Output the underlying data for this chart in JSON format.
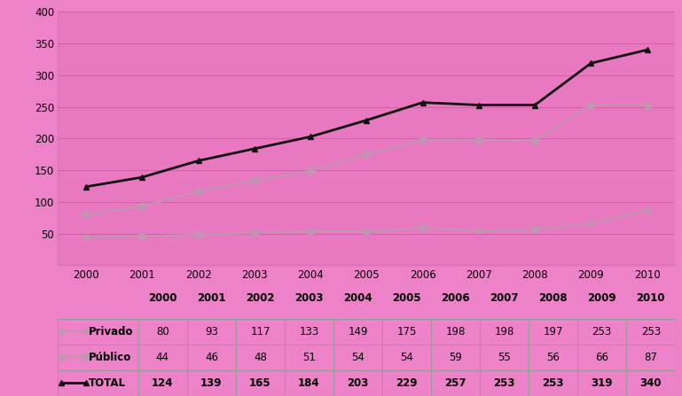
{
  "years": [
    2000,
    2001,
    2002,
    2003,
    2004,
    2005,
    2006,
    2007,
    2008,
    2009,
    2010
  ],
  "privado": [
    80,
    93,
    117,
    133,
    149,
    175,
    198,
    198,
    197,
    253,
    253
  ],
  "publico": [
    44,
    46,
    48,
    51,
    54,
    54,
    59,
    55,
    56,
    66,
    87
  ],
  "total": [
    124,
    139,
    165,
    184,
    203,
    229,
    257,
    253,
    253,
    319,
    340
  ],
  "bg_color": "#ee82c8",
  "plot_bg_color": "#e878c0",
  "grid_color": "#d060a8",
  "privado_color": "#c096b0",
  "publico_color": "#c096b0",
  "total_color": "#111111",
  "marker_privado": "D",
  "marker_publico": "s",
  "marker_total": "^",
  "ylim": [
    0,
    400
  ],
  "yticks": [
    50,
    100,
    150,
    200,
    250,
    300,
    350,
    400
  ],
  "figsize": [
    7.69,
    4.47
  ],
  "dpi": 100,
  "legend_labels": [
    "Privado",
    "Público",
    "TOTAL"
  ]
}
